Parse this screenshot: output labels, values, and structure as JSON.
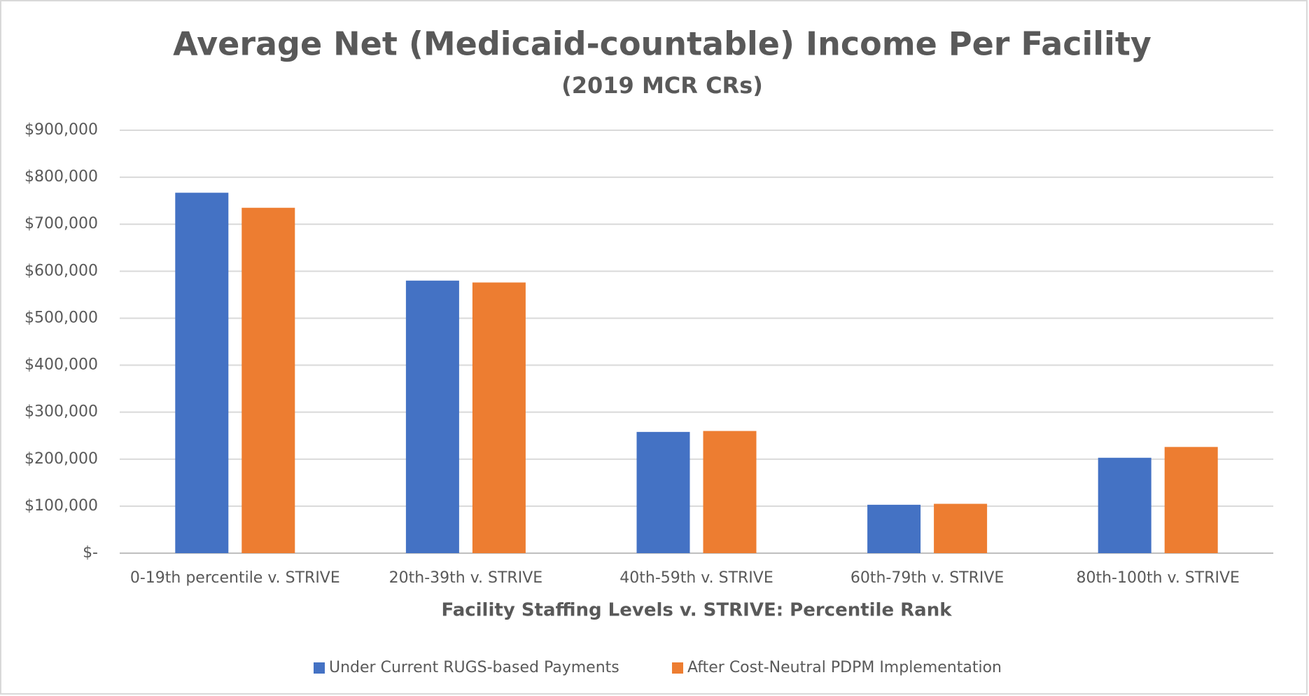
{
  "chart_data": {
    "type": "bar",
    "title": "Average Net (Medicaid-countable) Income Per Facility",
    "subtitle": "(2019 MCR CRs)",
    "x_label": "Facility Staffing Levels v. STRIVE: Percentile Rank",
    "categories": [
      "0-19th percentile v. STRIVE",
      "20th-39th v. STRIVE",
      "40th-59th v. STRIVE",
      "60th-79th v. STRIVE",
      "80th-100th v. STRIVE"
    ],
    "series": [
      {
        "name": "Under Current RUGS-based Payments",
        "color": "#4472c4",
        "values": [
          767000,
          580000,
          258000,
          103000,
          203000
        ]
      },
      {
        "name": "After Cost-Neutral PDPM Implementation",
        "color": "#ed7d31",
        "values": [
          735000,
          576000,
          260000,
          105000,
          226000
        ]
      }
    ],
    "ylim": [
      0,
      900000
    ],
    "yticks": [
      {
        "value": 0,
        "label": "$-"
      },
      {
        "value": 100000,
        "label": "$100,000"
      },
      {
        "value": 200000,
        "label": "$200,000"
      },
      {
        "value": 300000,
        "label": "$300,000"
      },
      {
        "value": 400000,
        "label": "$400,000"
      },
      {
        "value": 500000,
        "label": "$500,000"
      },
      {
        "value": 600000,
        "label": "$600,000"
      },
      {
        "value": 700000,
        "label": "$700,000"
      },
      {
        "value": 800000,
        "label": "$800,000"
      },
      {
        "value": 900000,
        "label": "$900,000"
      }
    ],
    "grid": true,
    "legend": "bottom"
  }
}
